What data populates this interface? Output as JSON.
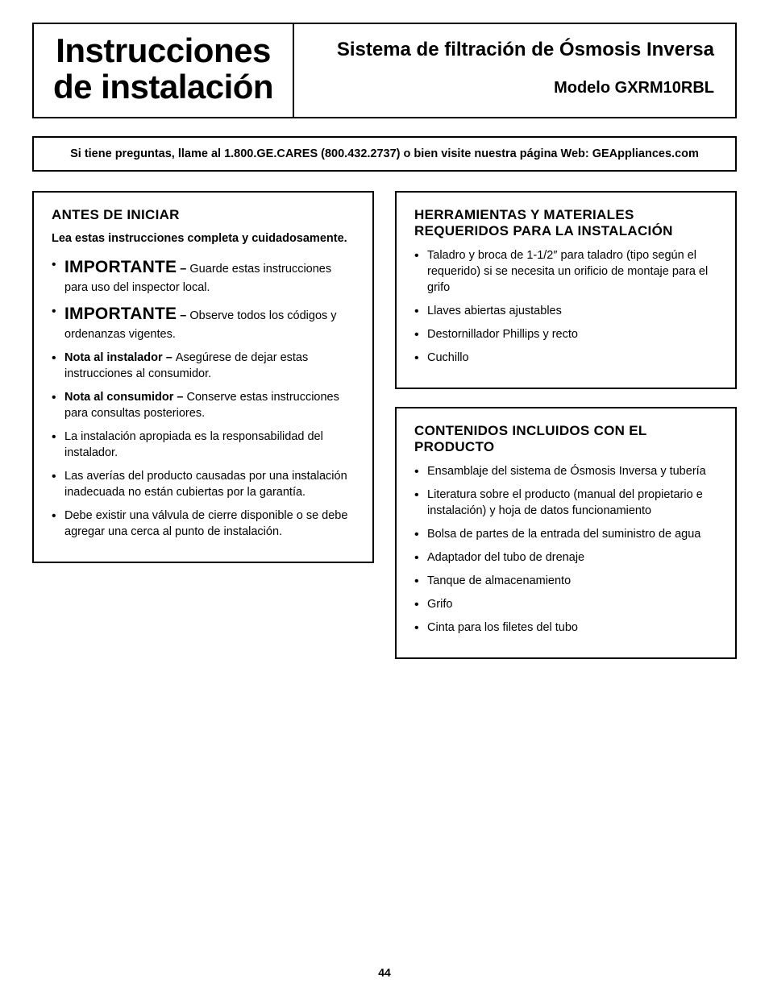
{
  "colors": {
    "text": "#000000",
    "background": "#ffffff",
    "border": "#000000"
  },
  "typography": {
    "base_font": "Arial, Helvetica, sans-serif",
    "title_fontsize_pt": 32,
    "subtitle_fontsize_pt": 18,
    "section_heading_fontsize_pt": 13,
    "body_fontsize_pt": 11
  },
  "header": {
    "title_line1": "Instrucciones",
    "title_line2": "de instalación",
    "subtitle": "Sistema de filtración de Ósmosis Inversa",
    "model_label": "Modelo",
    "model_value": "GXRM10RBL"
  },
  "banner": {
    "text": "Si tiene preguntas, llame al 1.800.GE.CARES (800.432.2737) o bien visite nuestra página Web: GEAppliances.com"
  },
  "before_start": {
    "heading": "ANTES DE INICIAR",
    "lead": "Lea estas instrucciones completa y cuidadosamente.",
    "items": [
      {
        "strong": "IMPORTANTE",
        "sep": " – ",
        "rest": "Guarde estas instrucciones para uso del inspector local."
      },
      {
        "strong": "IMPORTANTE",
        "sep": " – ",
        "rest": "Observe todos los códigos y ordenanzas vigentes."
      },
      {
        "bold_prefix": "Nota al instalador – ",
        "rest": "Asegúrese de dejar estas instrucciones al consumidor."
      },
      {
        "bold_prefix": "Nota al consumidor – ",
        "rest": "Conserve estas instrucciones para consultas posteriores."
      },
      {
        "rest": "La instalación apropiada es la responsabilidad del instalador."
      },
      {
        "rest": "Las averías del producto causadas por una instalación inadecuada no están cubiertas por la garantía."
      },
      {
        "rest": "Debe existir una válvula de cierre disponible o se debe agregar una cerca al punto de instalación."
      }
    ]
  },
  "tools": {
    "heading": "HERRAMIENTAS Y MATERIALES REQUERIDOS PARA LA INSTALACIÓN",
    "items": [
      "Taladro y broca de 1-1/2″ para taladro (tipo según el requerido) si se necesita un orificio de montaje para el grifo",
      "Llaves abiertas ajustables",
      "Destornillador Phillips y recto",
      "Cuchillo"
    ]
  },
  "contents": {
    "heading": "CONTENIDOS INCLUIDOS CON EL PRODUCTO",
    "items": [
      "Ensamblaje del sistema de Ósmosis Inversa y tubería",
      "Literatura sobre el producto (manual del propietario e instalación) y hoja de datos funcionamiento",
      "Bolsa de partes de la entrada del suministro de agua",
      "Adaptador del tubo de drenaje",
      "Tanque de almacenamiento",
      "Grifo",
      "Cinta para los filetes del tubo"
    ]
  },
  "page_number": "44"
}
